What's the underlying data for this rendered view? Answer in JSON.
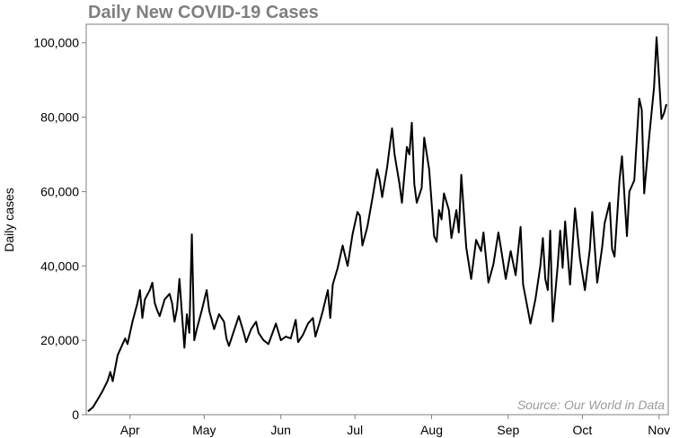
{
  "chart_data": {
    "type": "line",
    "title": "Daily New COVID-19 Cases",
    "xlabel": "",
    "ylabel": "Daily cases",
    "annotation": "Source: Our World in Data",
    "x_range": [
      "2020-03-15",
      "2020-11-04"
    ],
    "ylim": [
      0,
      105000
    ],
    "yticks": [
      0,
      20000,
      40000,
      60000,
      80000,
      100000
    ],
    "ytick_labels": [
      "0",
      "20,000",
      "40,000",
      "60,000",
      "80,000",
      "100,000"
    ],
    "xticks": [
      {
        "date": "2020-04-01",
        "label": "Apr"
      },
      {
        "date": "2020-05-01",
        "label": "May"
      },
      {
        "date": "2020-06-01",
        "label": "Jun"
      },
      {
        "date": "2020-07-01",
        "label": "Jul"
      },
      {
        "date": "2020-08-01",
        "label": "Aug"
      },
      {
        "date": "2020-09-01",
        "label": "Sep"
      },
      {
        "date": "2020-10-01",
        "label": "Oct"
      },
      {
        "date": "2020-11-01",
        "label": "Nov"
      }
    ],
    "grid": false,
    "series": [
      {
        "color": "#000000",
        "points": [
          [
            "2020-03-15",
            900
          ],
          [
            "2020-03-17",
            2000
          ],
          [
            "2020-03-19",
            4200
          ],
          [
            "2020-03-21",
            6500
          ],
          [
            "2020-03-23",
            9200
          ],
          [
            "2020-03-24",
            11500
          ],
          [
            "2020-03-25",
            9000
          ],
          [
            "2020-03-27",
            16000
          ],
          [
            "2020-03-29",
            19000
          ],
          [
            "2020-03-30",
            20500
          ],
          [
            "2020-03-31",
            19000
          ],
          [
            "2020-04-02",
            25000
          ],
          [
            "2020-04-04",
            30000
          ],
          [
            "2020-04-05",
            33500
          ],
          [
            "2020-04-06",
            26000
          ],
          [
            "2020-04-07",
            31000
          ],
          [
            "2020-04-09",
            33500
          ],
          [
            "2020-04-10",
            35500
          ],
          [
            "2020-04-11",
            30000
          ],
          [
            "2020-04-12",
            28000
          ],
          [
            "2020-04-13",
            26500
          ],
          [
            "2020-04-15",
            31000
          ],
          [
            "2020-04-17",
            32500
          ],
          [
            "2020-04-18",
            30000
          ],
          [
            "2020-04-19",
            25000
          ],
          [
            "2020-04-20",
            28500
          ],
          [
            "2020-04-21",
            36500
          ],
          [
            "2020-04-22",
            27000
          ],
          [
            "2020-04-23",
            18000
          ],
          [
            "2020-04-24",
            27000
          ],
          [
            "2020-04-25",
            22000
          ],
          [
            "2020-04-26",
            48500
          ],
          [
            "2020-04-27",
            20000
          ],
          [
            "2020-04-28",
            23000
          ],
          [
            "2020-04-30",
            28000
          ],
          [
            "2020-05-02",
            33500
          ],
          [
            "2020-05-03",
            28000
          ],
          [
            "2020-05-05",
            23000
          ],
          [
            "2020-05-07",
            27000
          ],
          [
            "2020-05-09",
            25000
          ],
          [
            "2020-05-10",
            20500
          ],
          [
            "2020-05-11",
            18500
          ],
          [
            "2020-05-13",
            22500
          ],
          [
            "2020-05-15",
            26500
          ],
          [
            "2020-05-17",
            22000
          ],
          [
            "2020-05-18",
            19500
          ],
          [
            "2020-05-20",
            23000
          ],
          [
            "2020-05-22",
            25000
          ],
          [
            "2020-05-23",
            22000
          ],
          [
            "2020-05-25",
            20000
          ],
          [
            "2020-05-27",
            19000
          ],
          [
            "2020-05-30",
            24500
          ],
          [
            "2020-06-01",
            20000
          ],
          [
            "2020-06-03",
            21000
          ],
          [
            "2020-06-05",
            20500
          ],
          [
            "2020-06-07",
            25500
          ],
          [
            "2020-06-08",
            19500
          ],
          [
            "2020-06-10",
            21500
          ],
          [
            "2020-06-12",
            24500
          ],
          [
            "2020-06-14",
            26000
          ],
          [
            "2020-06-15",
            21000
          ],
          [
            "2020-06-17",
            25500
          ],
          [
            "2020-06-18",
            28000
          ],
          [
            "2020-06-20",
            33500
          ],
          [
            "2020-06-21",
            26000
          ],
          [
            "2020-06-22",
            35000
          ],
          [
            "2020-06-24",
            39500
          ],
          [
            "2020-06-26",
            45500
          ],
          [
            "2020-06-28",
            40000
          ],
          [
            "2020-06-30",
            48500
          ],
          [
            "2020-07-02",
            54500
          ],
          [
            "2020-07-03",
            53500
          ],
          [
            "2020-07-04",
            45500
          ],
          [
            "2020-07-06",
            50500
          ],
          [
            "2020-07-08",
            58000
          ],
          [
            "2020-07-10",
            66000
          ],
          [
            "2020-07-11",
            63000
          ],
          [
            "2020-07-12",
            58500
          ],
          [
            "2020-07-14",
            66500
          ],
          [
            "2020-07-16",
            77000
          ],
          [
            "2020-07-17",
            70000
          ],
          [
            "2020-07-19",
            62000
          ],
          [
            "2020-07-20",
            57000
          ],
          [
            "2020-07-22",
            72000
          ],
          [
            "2020-07-23",
            70000
          ],
          [
            "2020-07-24",
            78500
          ],
          [
            "2020-07-25",
            62000
          ],
          [
            "2020-07-26",
            57000
          ],
          [
            "2020-07-28",
            61000
          ],
          [
            "2020-07-29",
            74500
          ],
          [
            "2020-07-31",
            66000
          ],
          [
            "2020-08-02",
            48000
          ],
          [
            "2020-08-03",
            46500
          ],
          [
            "2020-08-04",
            55000
          ],
          [
            "2020-08-05",
            52500
          ],
          [
            "2020-08-06",
            59500
          ],
          [
            "2020-08-08",
            55000
          ],
          [
            "2020-08-09",
            47500
          ],
          [
            "2020-08-11",
            55000
          ],
          [
            "2020-08-12",
            49000
          ],
          [
            "2020-08-13",
            64500
          ],
          [
            "2020-08-15",
            45000
          ],
          [
            "2020-08-17",
            36500
          ],
          [
            "2020-08-19",
            47000
          ],
          [
            "2020-08-21",
            44000
          ],
          [
            "2020-08-22",
            49000
          ],
          [
            "2020-08-24",
            35500
          ],
          [
            "2020-08-26",
            40500
          ],
          [
            "2020-08-28",
            49000
          ],
          [
            "2020-08-29",
            45000
          ],
          [
            "2020-08-31",
            36500
          ],
          [
            "2020-09-02",
            44000
          ],
          [
            "2020-09-04",
            37500
          ],
          [
            "2020-09-06",
            50500
          ],
          [
            "2020-09-07",
            35000
          ],
          [
            "2020-09-09",
            28000
          ],
          [
            "2020-09-10",
            24500
          ],
          [
            "2020-09-12",
            31000
          ],
          [
            "2020-09-14",
            40000
          ],
          [
            "2020-09-15",
            47500
          ],
          [
            "2020-09-16",
            36500
          ],
          [
            "2020-09-17",
            33500
          ],
          [
            "2020-09-18",
            49500
          ],
          [
            "2020-09-19",
            25000
          ],
          [
            "2020-09-21",
            40000
          ],
          [
            "2020-09-22",
            49500
          ],
          [
            "2020-09-23",
            39500
          ],
          [
            "2020-09-24",
            52000
          ],
          [
            "2020-09-26",
            35000
          ],
          [
            "2020-09-28",
            55500
          ],
          [
            "2020-09-30",
            42000
          ],
          [
            "2020-10-02",
            33500
          ],
          [
            "2020-10-04",
            44500
          ],
          [
            "2020-10-05",
            54500
          ],
          [
            "2020-10-07",
            35500
          ],
          [
            "2020-10-09",
            45000
          ],
          [
            "2020-10-10",
            51500
          ],
          [
            "2020-10-12",
            57000
          ],
          [
            "2020-10-13",
            44500
          ],
          [
            "2020-10-14",
            42500
          ],
          [
            "2020-10-16",
            63000
          ],
          [
            "2020-10-17",
            69500
          ],
          [
            "2020-10-19",
            48000
          ],
          [
            "2020-10-20",
            60000
          ],
          [
            "2020-10-22",
            63000
          ],
          [
            "2020-10-24",
            85000
          ],
          [
            "2020-10-25",
            82000
          ],
          [
            "2020-10-26",
            59500
          ],
          [
            "2020-10-28",
            74500
          ],
          [
            "2020-10-30",
            88000
          ],
          [
            "2020-10-31",
            101500
          ],
          [
            "2020-11-02",
            79500
          ],
          [
            "2020-11-03",
            81000
          ],
          [
            "2020-11-04",
            83500
          ]
        ]
      }
    ]
  }
}
